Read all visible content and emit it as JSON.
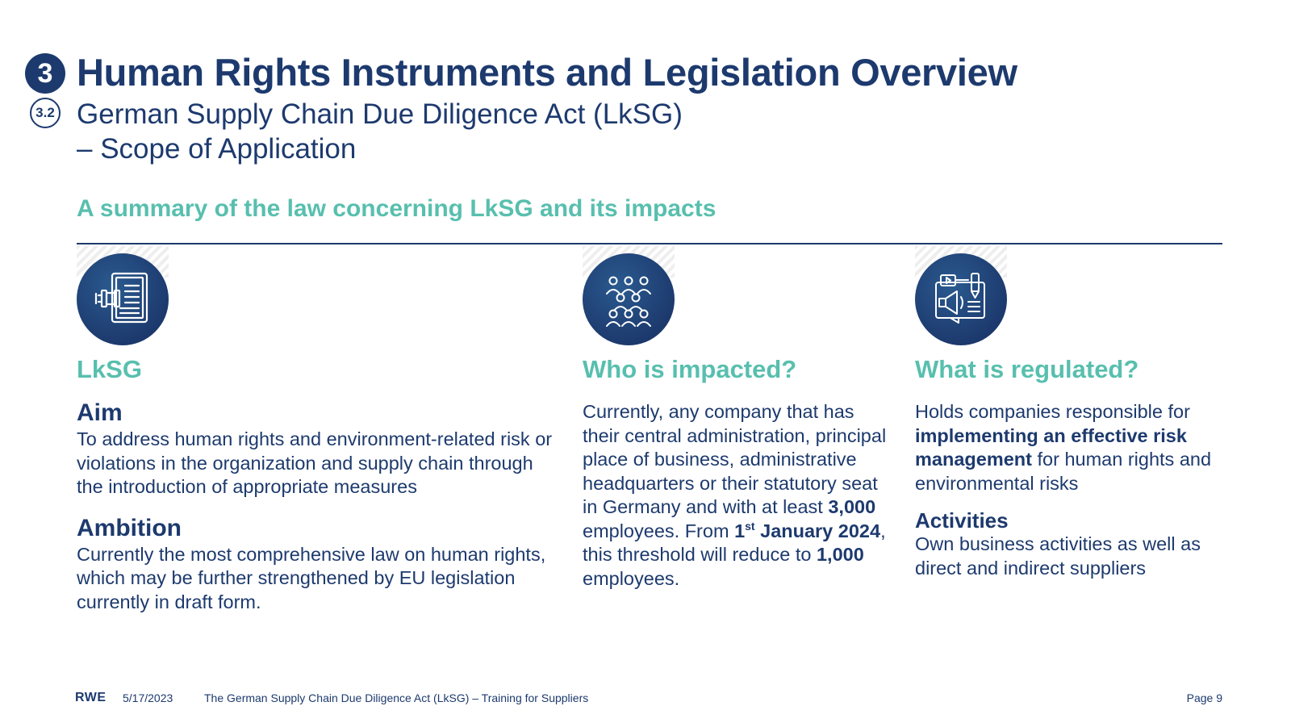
{
  "header": {
    "section_number": "3",
    "title": "Human Rights Instruments and Legislation Overview",
    "subsection_number": "3.2",
    "subtitle_line1": "German Supply Chain Due Diligence Act (LkSG)",
    "subtitle_line2": "– Scope of Application"
  },
  "section_heading": "A summary of the law concerning LkSG and its impacts",
  "columns": {
    "lksg": {
      "icon": "law-document-gavel-icon",
      "title": "LkSG",
      "aim_heading": "Aim",
      "aim_text": "To address human rights and environment-related risk or violations in the organization and supply chain through the introduction of appropriate measures",
      "ambition_heading": "Ambition",
      "ambition_text": "Currently the most comprehensive law on human rights, which may be further strengthened by EU legislation currently in draft form."
    },
    "who": {
      "icon": "people-group-icon",
      "title": "Who is impacted?",
      "text_part1": "Currently, any company that has their central administration, principal place of business, administrative headquarters or their statutory seat in Germany and with at least ",
      "bold_threshold": "3,000",
      "text_part2": " employees. From ",
      "bold_date_day": "1",
      "bold_date_sup": "st",
      "bold_date_rest": " January 2024",
      "text_part3": ", this threshold will reduce to ",
      "bold_new_threshold": "1,000",
      "text_part4": " employees."
    },
    "what": {
      "icon": "megaphone-media-icon",
      "title": "What is regulated?",
      "text_part1": "Holds companies responsible for ",
      "bold_text": "implementing an effective risk management",
      "text_part2": " for human rights and environmental risks",
      "activities_heading": "Activities",
      "activities_text": "Own business activities as well as direct and indirect suppliers"
    }
  },
  "footer": {
    "logo": "RWE",
    "date": "5/17/2023",
    "title": "The German Supply Chain Due Diligence Act (LkSG) – Training for Suppliers",
    "page": "Page 9"
  },
  "colors": {
    "navy": "#1d3a6e",
    "teal": "#58bfae"
  }
}
